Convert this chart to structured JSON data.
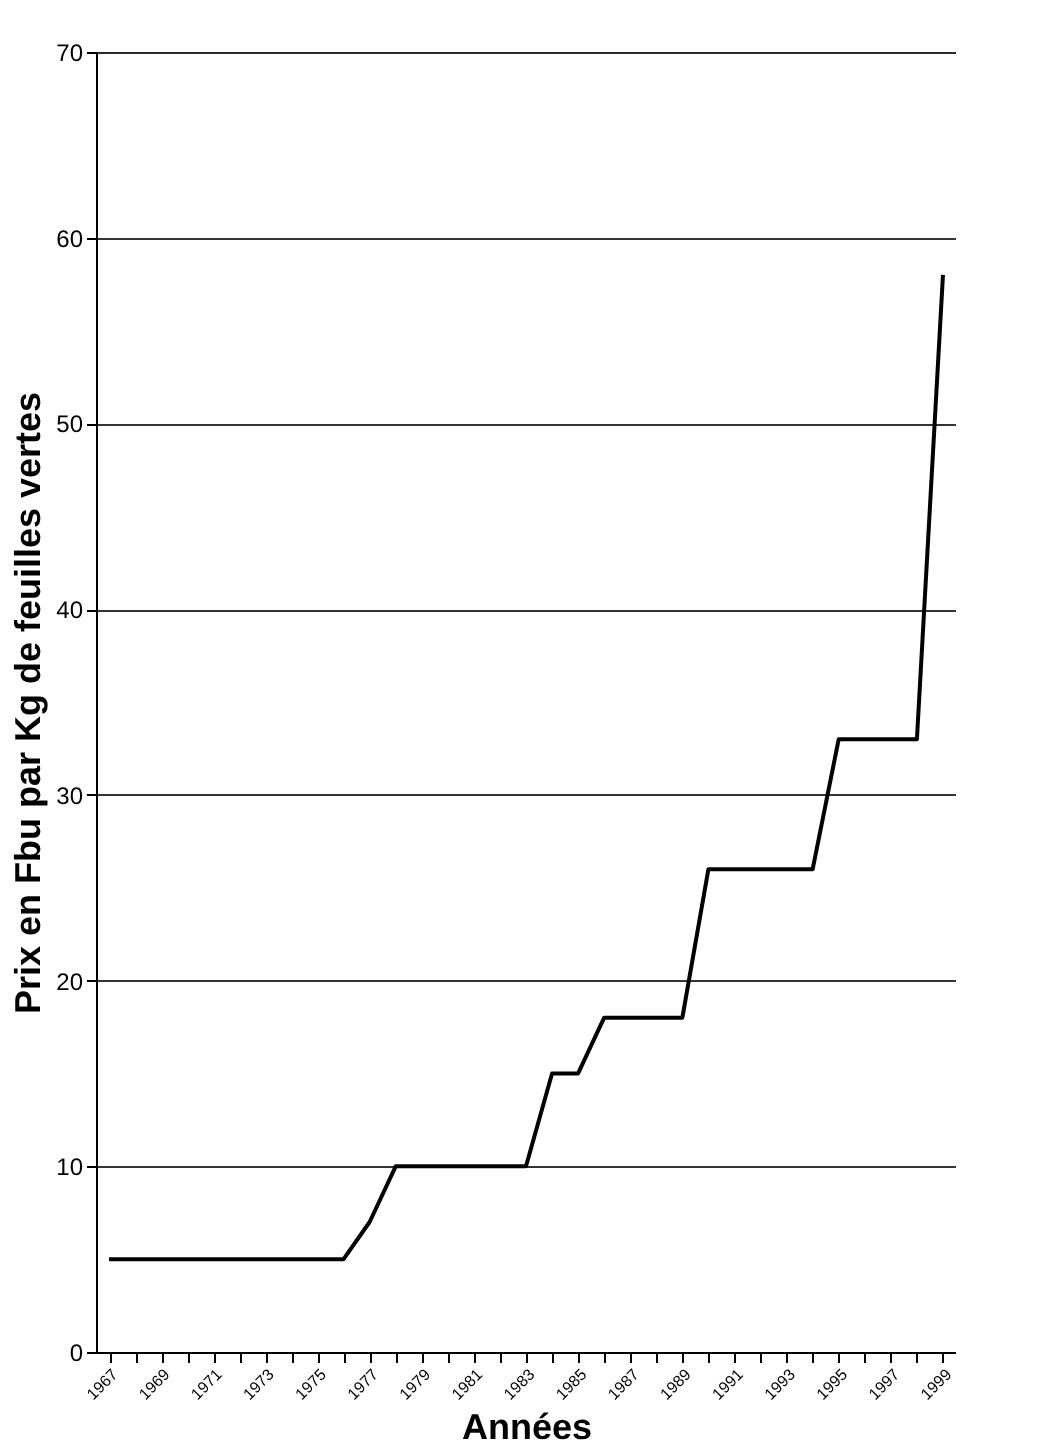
{
  "chart_data": {
    "type": "line",
    "xlabel": "Années",
    "ylabel": "Prix en Fbu par Kg de feuilles vertes",
    "categories": [
      "1967",
      null,
      "1969",
      null,
      "1971",
      null,
      "1973",
      null,
      "1975",
      null,
      "1977",
      null,
      "1979",
      null,
      "1981",
      null,
      "1983",
      null,
      "1985",
      null,
      "1987",
      null,
      "1989",
      null,
      "1991",
      null,
      "1993",
      null,
      "1995",
      null,
      "1997",
      null,
      "1999"
    ],
    "series": [
      {
        "color": "#000000",
        "values": [
          5,
          5,
          5,
          5,
          5,
          5,
          5,
          5,
          5,
          5,
          7,
          10,
          10,
          10,
          10,
          10,
          10,
          15,
          15,
          18,
          18,
          18,
          18,
          26,
          26,
          26,
          26,
          26,
          33,
          33,
          33,
          33,
          58
        ]
      }
    ],
    "ylim": [
      0,
      70
    ],
    "yticks": [
      0,
      10,
      20,
      30,
      40,
      50,
      60,
      70
    ],
    "grid": "y",
    "marker": "none",
    "line_style": "solid"
  }
}
